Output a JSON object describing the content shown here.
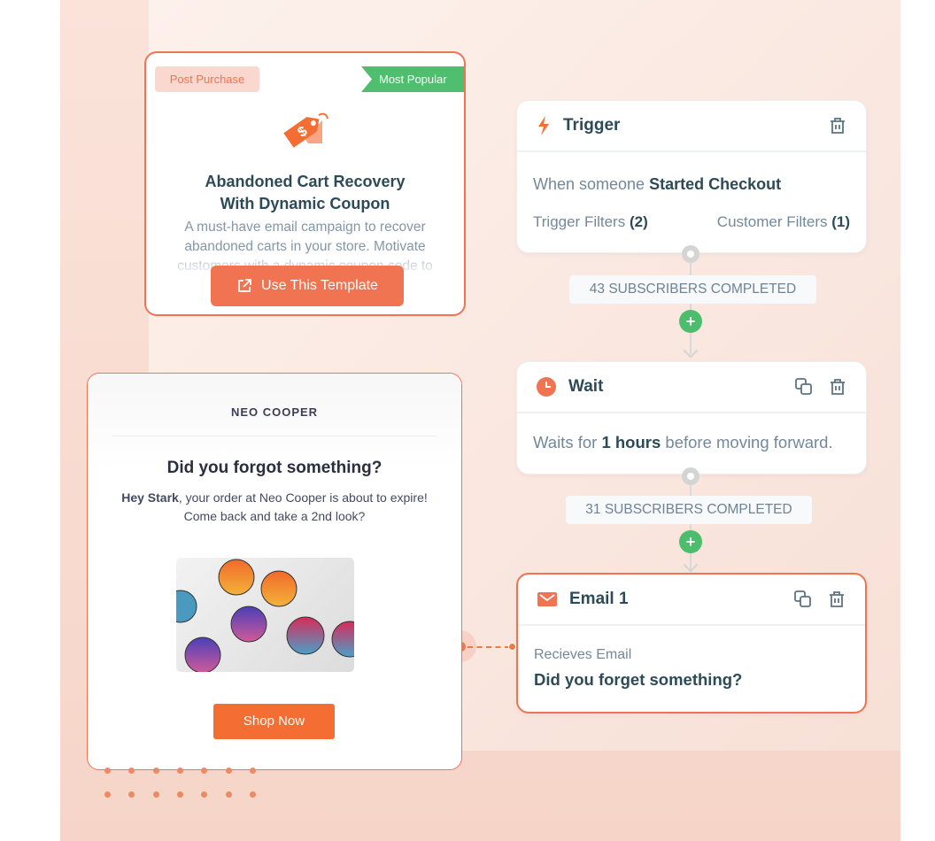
{
  "template_card": {
    "category_tag": "Post Purchase",
    "badge": "Most Popular",
    "icon": "price-tag-icon",
    "title": "Abandoned Cart Recovery With Dynamic Coupon",
    "description": "A must-have email campaign to recover abandoned carts in your store. Motivate customers with a dynamic coupon code to",
    "button_label": "Use This Template"
  },
  "flow": {
    "trigger": {
      "title": "Trigger",
      "text_prefix": "When someone",
      "event": "Started Checkout",
      "trigger_filters_label": "Trigger Filters",
      "trigger_filters_count": "(2)",
      "customer_filters_label": "Customer Filters",
      "customer_filters_count": "(1)"
    },
    "step1_completed": "43 SUBSCRIBERS COMPLETED",
    "wait": {
      "title": "Wait",
      "text_prefix": "Waits for",
      "duration": "1 hours",
      "text_suffix": "before moving forward."
    },
    "step2_completed": "31 SUBSCRIBERS COMPLETED",
    "email": {
      "title": "Email 1",
      "label": "Recieves Email",
      "subject": "Did you forget something?"
    }
  },
  "email_preview": {
    "brand": "NEO COOPER",
    "heading": "Did you forgot something?",
    "greeting_name": "Hey Stark",
    "body_line1": ", your order at Neo Cooper is about to expire!",
    "body_line2": "Come back and take a 2nd look?",
    "button_label": "Shop Now"
  },
  "colors": {
    "accent": "#f07352",
    "success": "#4bbd6c",
    "text": "#2d4a57"
  }
}
